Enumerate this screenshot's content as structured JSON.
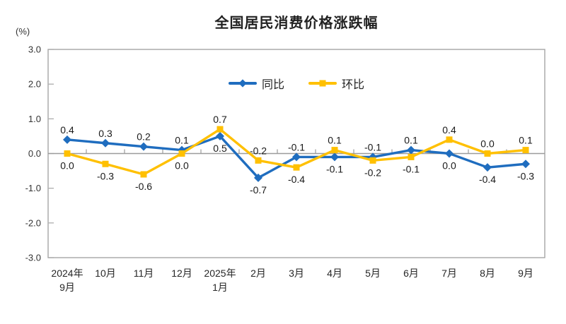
{
  "chart_data": {
    "type": "line",
    "title": "全国居民消费价格涨跌幅",
    "ylabel": "(%)",
    "categories": [
      "2024年\n9月",
      "10月",
      "11月",
      "12月",
      "2025年\n1月",
      "2月",
      "3月",
      "4月",
      "5月",
      "6月",
      "7月",
      "8月",
      "9月"
    ],
    "series": [
      {
        "name": "同比",
        "color": "#1F6DBF",
        "marker": "diamond",
        "values": [
          0.4,
          0.3,
          0.2,
          0.1,
          0.5,
          -0.7,
          -0.1,
          -0.1,
          -0.1,
          0.1,
          0.0,
          -0.4,
          -0.3
        ]
      },
      {
        "name": "环比",
        "color": "#FFC000",
        "marker": "square",
        "values": [
          0.0,
          -0.3,
          -0.6,
          0.0,
          0.7,
          -0.2,
          -0.4,
          0.1,
          -0.2,
          -0.1,
          0.4,
          0.0,
          0.1
        ]
      }
    ],
    "ylim": [
      -3.0,
      3.0
    ],
    "ytick_step": 1.0,
    "yticks": [
      "3.0",
      "2.0",
      "1.0",
      "0.0",
      "-1.0",
      "-2.0",
      "-3.0"
    ],
    "grid": false,
    "data_labels": true,
    "legend_position": "top-center",
    "axis_color": "#A6A6A6",
    "zero_line_color": "#9B9B9B",
    "text_color": "#262626"
  }
}
